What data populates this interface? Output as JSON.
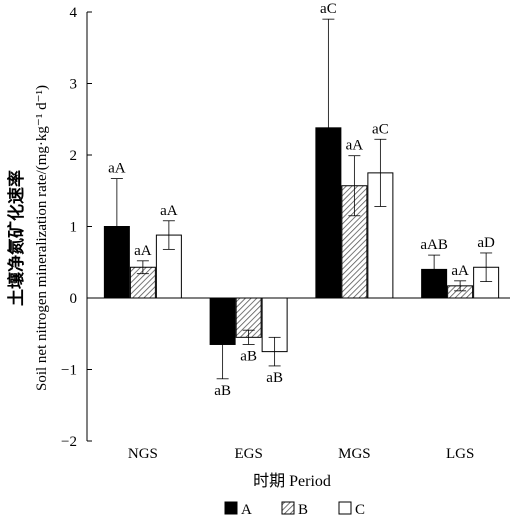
{
  "chart_data": {
    "type": "bar",
    "categories": [
      "NGS",
      "EGS",
      "MGS",
      "LGS"
    ],
    "series": [
      {
        "name": "A",
        "values": [
          1.0,
          -0.65,
          2.38,
          0.4
        ],
        "errors": [
          0.67,
          0.48,
          1.52,
          0.2
        ],
        "labels": [
          "aA",
          "aB",
          "aC",
          "aAB"
        ],
        "fill": "#000000"
      },
      {
        "name": "B",
        "values": [
          0.43,
          -0.55,
          1.57,
          0.17
        ],
        "errors": [
          0.09,
          0.1,
          0.42,
          0.07
        ],
        "labels": [
          "aA",
          "aB",
          "aA",
          "aA"
        ],
        "fill": "hatch"
      },
      {
        "name": "C",
        "values": [
          0.88,
          -0.75,
          1.75,
          0.43
        ],
        "errors": [
          0.2,
          0.2,
          0.47,
          0.2
        ],
        "labels": [
          "aA",
          "aB",
          "aC",
          "aD"
        ],
        "fill": "#ffffff"
      }
    ],
    "ylim": [
      -2,
      4
    ],
    "yticks": [
      -2,
      -1,
      0,
      1,
      2,
      3,
      4
    ],
    "ylabel_cn": "土壤净氮矿化速率",
    "ylabel_en": "Soil net nitrogen mineralization rate/(mg·kg⁻¹ d⁻¹)",
    "xlabel": "时期  Period",
    "legend": [
      "A",
      "B",
      "C"
    ],
    "legend_position": "bottom",
    "grid": false
  }
}
